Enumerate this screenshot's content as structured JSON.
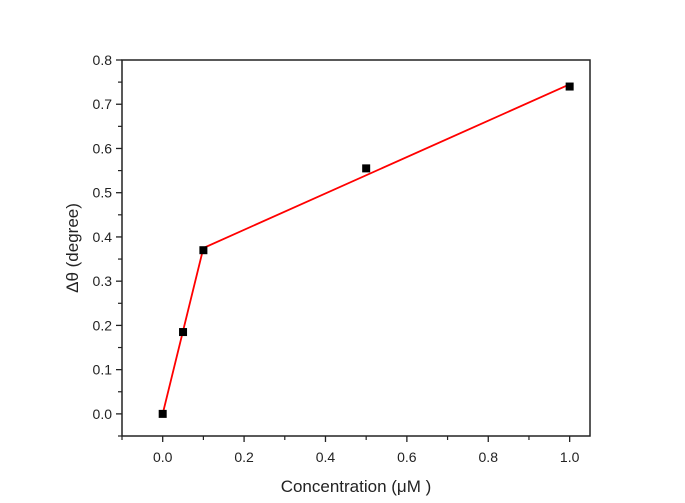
{
  "chart_data": {
    "type": "scatter",
    "title": "",
    "xlabel": "Concentration (μM )",
    "ylabel": "Δθ (degree)",
    "xlim": [
      -0.1,
      1.05
    ],
    "ylim": [
      -0.05,
      0.8
    ],
    "xticks": [
      0.0,
      0.2,
      0.4,
      0.6,
      0.8,
      1.0
    ],
    "xtick_labels": [
      "0.0",
      "0.2",
      "0.4",
      "0.6",
      "0.8",
      "1.0"
    ],
    "yticks": [
      0.0,
      0.1,
      0.2,
      0.3,
      0.4,
      0.5,
      0.6,
      0.7,
      0.8
    ],
    "ytick_labels": [
      "0.0",
      "0.1",
      "0.2",
      "0.3",
      "0.4",
      "0.5",
      "0.6",
      "0.7",
      "0.8"
    ],
    "grid": false,
    "legend": null,
    "series": [
      {
        "name": "data",
        "marker": "square",
        "color": "#000000",
        "x": [
          0.0,
          0.05,
          0.1,
          0.5,
          1.0
        ],
        "y": [
          0.0,
          0.185,
          0.37,
          0.555,
          0.74
        ]
      },
      {
        "name": "fit",
        "type": "line",
        "color": "#ff0000",
        "x": [
          0.0,
          0.1,
          1.0
        ],
        "y": [
          0.0,
          0.375,
          0.745
        ]
      }
    ]
  }
}
